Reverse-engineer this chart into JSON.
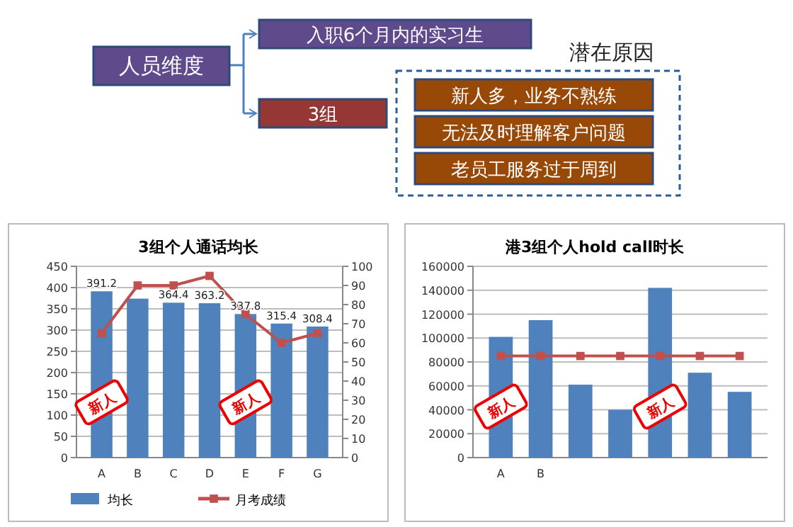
{
  "chart_data": [
    {
      "type": "other",
      "annotations": [
        "人员维度",
        "入职6个月内的实习生",
        "3组",
        "潜在原因",
        "新人多，业务不熟练",
        "无法及时理解客户问题",
        "老员工服务过于周到"
      ]
    },
    {
      "type": "bar",
      "title": "3组个人通话均长",
      "categories": [
        "A",
        "B",
        "C",
        "D",
        "E",
        "F",
        "G"
      ],
      "ylim": [
        0,
        450
      ],
      "yticks": [
        0,
        50,
        100,
        150,
        200,
        250,
        300,
        350,
        400,
        450
      ],
      "y2lim": [
        0,
        100
      ],
      "y2ticks": [
        0,
        10,
        20,
        30,
        40,
        50,
        60,
        70,
        80,
        90,
        100
      ],
      "grid": "y",
      "legend": "bottom",
      "marker": "square",
      "series": [
        {
          "name": "均长",
          "type": "bar",
          "color": "#4f81bd",
          "values": [
            391.2,
            374,
            364.4,
            363.2,
            337.8,
            315.4,
            308.4
          ],
          "value_labels": [
            "391.2",
            null,
            "364.4",
            "363.2",
            "337.8",
            "315.4",
            "308.4"
          ]
        },
        {
          "name": "月考成绩",
          "type": "line",
          "axis": "y2",
          "color": "#c0504d",
          "values": [
            65,
            90,
            90,
            95,
            75,
            60,
            65
          ]
        }
      ],
      "annotations": [
        {
          "text": "新人",
          "x": "A",
          "y": 130
        },
        {
          "text": "新人",
          "x": "E",
          "y": 130
        }
      ]
    },
    {
      "type": "bar",
      "title": "港3组个人hold call时长",
      "categories": [
        "A",
        "B",
        null,
        null,
        null,
        null,
        null
      ],
      "ylim": [
        0,
        160000
      ],
      "yticks": [
        0,
        20000,
        40000,
        60000,
        80000,
        100000,
        120000,
        140000,
        160000
      ],
      "grid": "y",
      "marker": "square",
      "series": [
        {
          "type": "bar",
          "color": "#4f81bd",
          "values": [
            101000,
            115000,
            61000,
            40000,
            142000,
            71000,
            55000
          ]
        },
        {
          "type": "line",
          "color": "#c0504d",
          "values": [
            85000,
            85000,
            85000,
            85000,
            85000,
            85000,
            85000
          ]
        }
      ],
      "annotations": [
        "新人",
        "新人"
      ]
    }
  ]
}
